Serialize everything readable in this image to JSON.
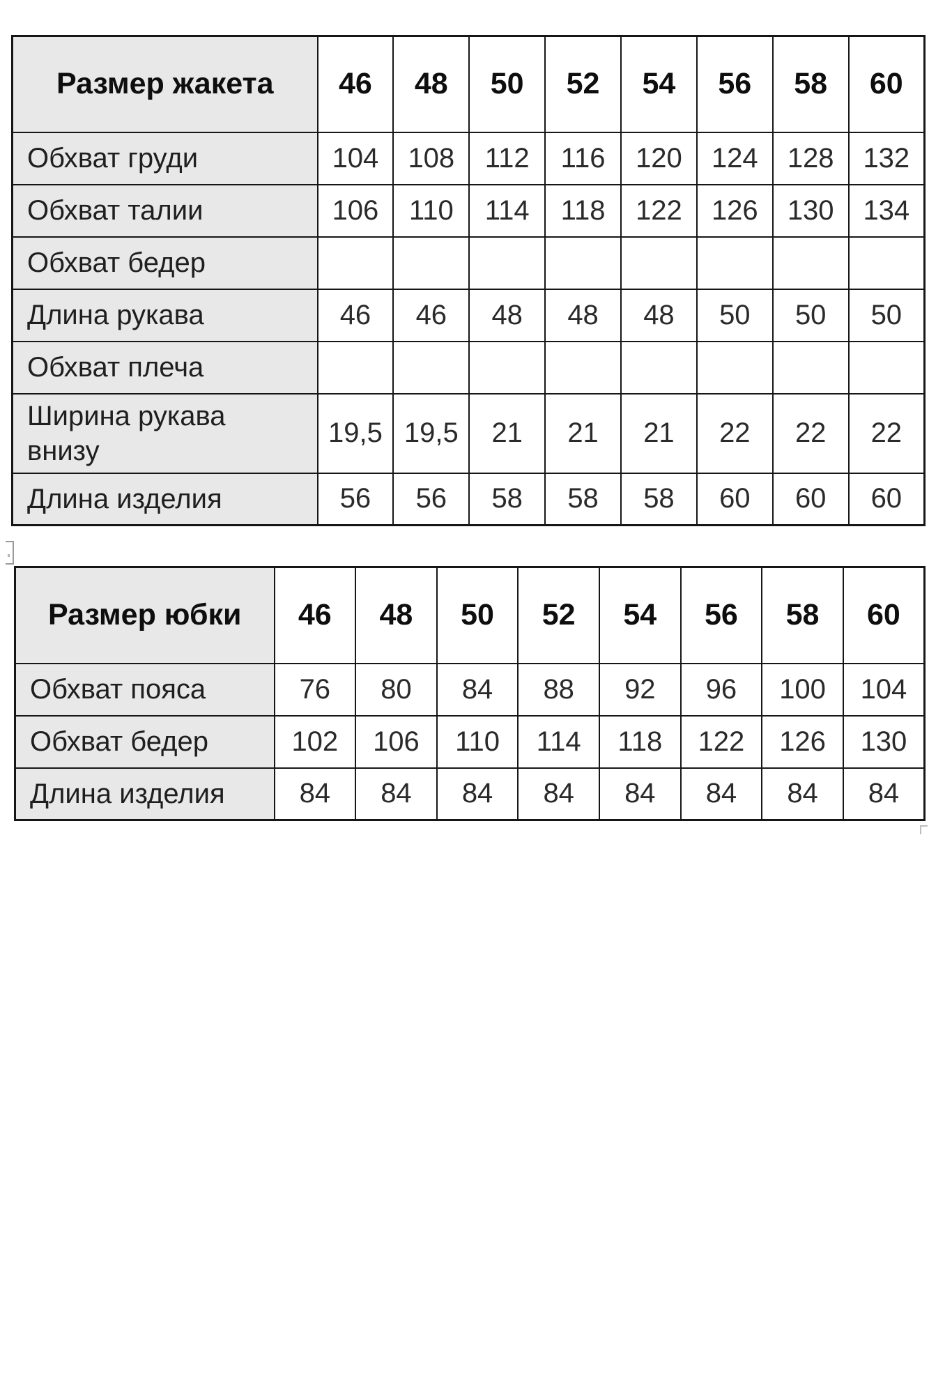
{
  "colors": {
    "label_column_bg": "#e8e8e8",
    "table_border": "#161616",
    "data_bg": "#ffffff",
    "text": "#1a1a1a"
  },
  "tables": [
    {
      "header": "Размер жакета",
      "sizes": [
        "46",
        "48",
        "50",
        "52",
        "54",
        "56",
        "58",
        "60"
      ],
      "rows": [
        {
          "label": "Обхват груди",
          "values": [
            "104",
            "108",
            "112",
            "116",
            "120",
            "124",
            "128",
            "132"
          ]
        },
        {
          "label": "Обхват талии",
          "values": [
            "106",
            "110",
            "114",
            "118",
            "122",
            "126",
            "130",
            "134"
          ]
        },
        {
          "label": "Обхват бедер",
          "values": [
            "",
            "",
            "",
            "",
            "",
            "",
            "",
            ""
          ]
        },
        {
          "label": "Длина рукава",
          "values": [
            "46",
            "46",
            "48",
            "48",
            "48",
            "50",
            "50",
            "50"
          ]
        },
        {
          "label": "Обхват плеча",
          "values": [
            "",
            "",
            "",
            "",
            "",
            "",
            "",
            ""
          ]
        },
        {
          "label": "Ширина рукава внизу",
          "values": [
            "19,5",
            "19,5",
            "21",
            "21",
            "21",
            "22",
            "22",
            "22"
          ]
        },
        {
          "label": "Длина изделия",
          "values": [
            "56",
            "56",
            "58",
            "58",
            "58",
            "60",
            "60",
            "60"
          ]
        }
      ]
    },
    {
      "header": "Размер юбки",
      "sizes": [
        "46",
        "48",
        "50",
        "52",
        "54",
        "56",
        "58",
        "60"
      ],
      "rows": [
        {
          "label": "Обхват пояса",
          "values": [
            "76",
            "80",
            "84",
            "88",
            "92",
            "96",
            "100",
            "104"
          ]
        },
        {
          "label": "Обхват бедер",
          "values": [
            "102",
            "106",
            "110",
            "114",
            "118",
            "122",
            "126",
            "130"
          ]
        },
        {
          "label": "Длина изделия",
          "values": [
            "84",
            "84",
            "84",
            "84",
            "84",
            "84",
            "84",
            "84"
          ]
        }
      ]
    }
  ],
  "artifacts": {
    "between_tables_mark": "bracket-scan-artifact",
    "bottom_right_mark": "corner-scan-artifact"
  }
}
